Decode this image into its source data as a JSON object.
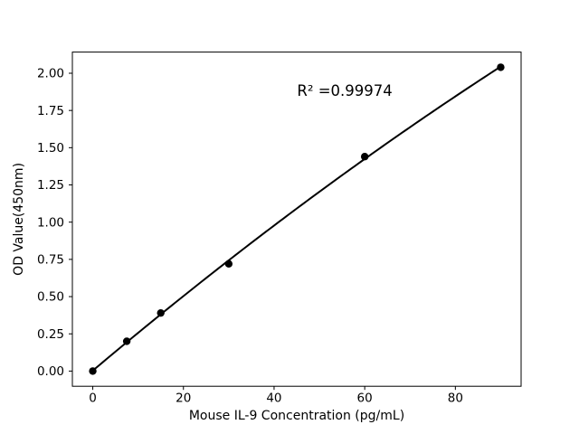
{
  "figure": {
    "background_color": "#ffffff",
    "foreground_color": "#000000"
  },
  "chart_data": {
    "type": "scatter",
    "title": "",
    "xlabel": "Mouse IL-9 Concentration (pg/mL)",
    "ylabel": "OD Value(450nm)",
    "points": [
      {
        "x": 0,
        "y": 0.0
      },
      {
        "x": 7.5,
        "y": 0.2
      },
      {
        "x": 15,
        "y": 0.39
      },
      {
        "x": 30,
        "y": 0.72
      },
      {
        "x": 60,
        "y": 1.44
      },
      {
        "x": 90,
        "y": 2.04
      }
    ],
    "fit": {
      "type": "quadratic",
      "r_squared": 0.99974
    },
    "annotation": {
      "text": "R² =0.99974",
      "x": 55.6,
      "y": 1.885
    },
    "x_ticks": [
      "0",
      "20",
      "40",
      "60",
      "80"
    ],
    "y_ticks": [
      "0.00",
      "0.25",
      "0.50",
      "0.75",
      "1.00",
      "1.25",
      "1.50",
      "1.75",
      "2.00"
    ],
    "xlim": [
      -4.5,
      94.5
    ],
    "ylim": [
      -0.102,
      2.142
    ],
    "grid": false,
    "legend_position": "none",
    "line_color": "#000000",
    "marker_color": "#000000"
  }
}
